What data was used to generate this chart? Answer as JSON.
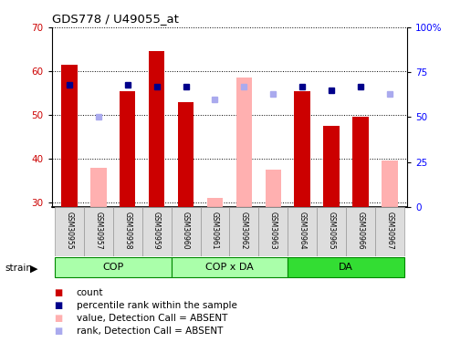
{
  "title": "GDS778 / U49055_at",
  "samples": [
    "GSM30955",
    "GSM30957",
    "GSM30958",
    "GSM30959",
    "GSM30960",
    "GSM30961",
    "GSM30962",
    "GSM30963",
    "GSM30964",
    "GSM30965",
    "GSM30966",
    "GSM30967"
  ],
  "count_present": [
    61.5,
    null,
    55.5,
    64.5,
    53.0,
    null,
    null,
    null,
    55.5,
    47.5,
    49.5,
    null
  ],
  "count_absent": [
    null,
    38.0,
    null,
    null,
    null,
    31.0,
    58.5,
    37.5,
    null,
    null,
    null,
    39.5
  ],
  "rank_present": [
    68,
    null,
    68,
    67,
    67,
    null,
    null,
    null,
    67,
    65,
    67,
    null
  ],
  "rank_absent": [
    null,
    50,
    null,
    null,
    null,
    60,
    67,
    63,
    null,
    null,
    null,
    63
  ],
  "group_labels": [
    "COP",
    "COP x DA",
    "DA"
  ],
  "group_starts": [
    0,
    4,
    8
  ],
  "group_ends": [
    3,
    7,
    11
  ],
  "group_colors": [
    "#AAFFAA",
    "#AAFFAA",
    "#33DD33"
  ],
  "group_border": "#008800",
  "ylim_left": [
    29,
    70
  ],
  "ylim_right": [
    0,
    100
  ],
  "yticks_left": [
    30,
    40,
    50,
    60,
    70
  ],
  "yticks_right": [
    0,
    25,
    50,
    75,
    100
  ],
  "bar_color_present": "#CC0000",
  "bar_color_absent": "#FFB0B0",
  "rank_color_present": "#00008B",
  "rank_color_absent": "#AAAAEE",
  "bar_width": 0.55,
  "legend_items": [
    {
      "color": "#CC0000",
      "label": "count"
    },
    {
      "color": "#00008B",
      "label": "percentile rank within the sample"
    },
    {
      "color": "#FFB0B0",
      "label": "value, Detection Call = ABSENT"
    },
    {
      "color": "#AAAAEE",
      "label": "rank, Detection Call = ABSENT"
    }
  ]
}
